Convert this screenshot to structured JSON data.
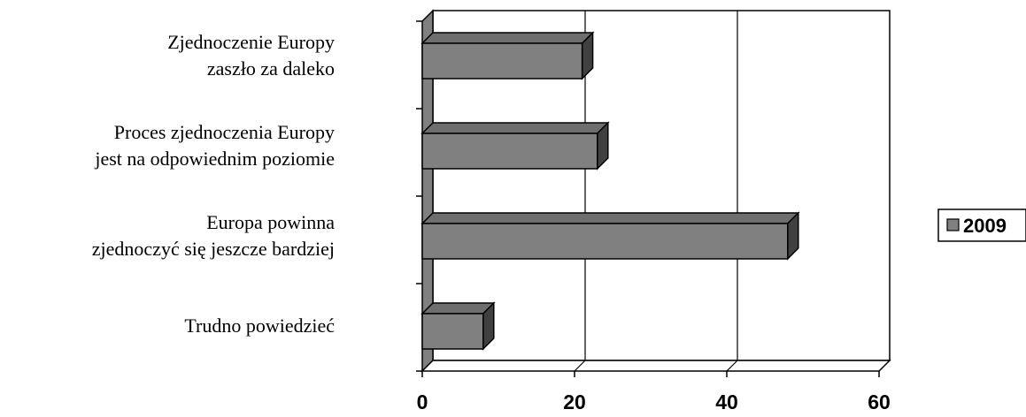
{
  "chart_data": {
    "type": "bar",
    "orientation": "horizontal",
    "categories": [
      [
        "Zjednoczenie Europy",
        "zaszło za daleko"
      ],
      [
        "Proces zjednoczenia Europy",
        "jest na odpowiednim poziomie"
      ],
      [
        "Europa powinna",
        "zjednoczyć się jeszcze bardziej"
      ],
      [
        "Trudno powiedzieć"
      ]
    ],
    "series": [
      {
        "name": "2009",
        "values": [
          21,
          23,
          48,
          8
        ],
        "color": "#808080"
      }
    ],
    "xlim": [
      0,
      60
    ],
    "xticks": [
      "0",
      "20",
      "40",
      "60"
    ],
    "grid": true,
    "legend_position": "right",
    "style": "3d"
  }
}
